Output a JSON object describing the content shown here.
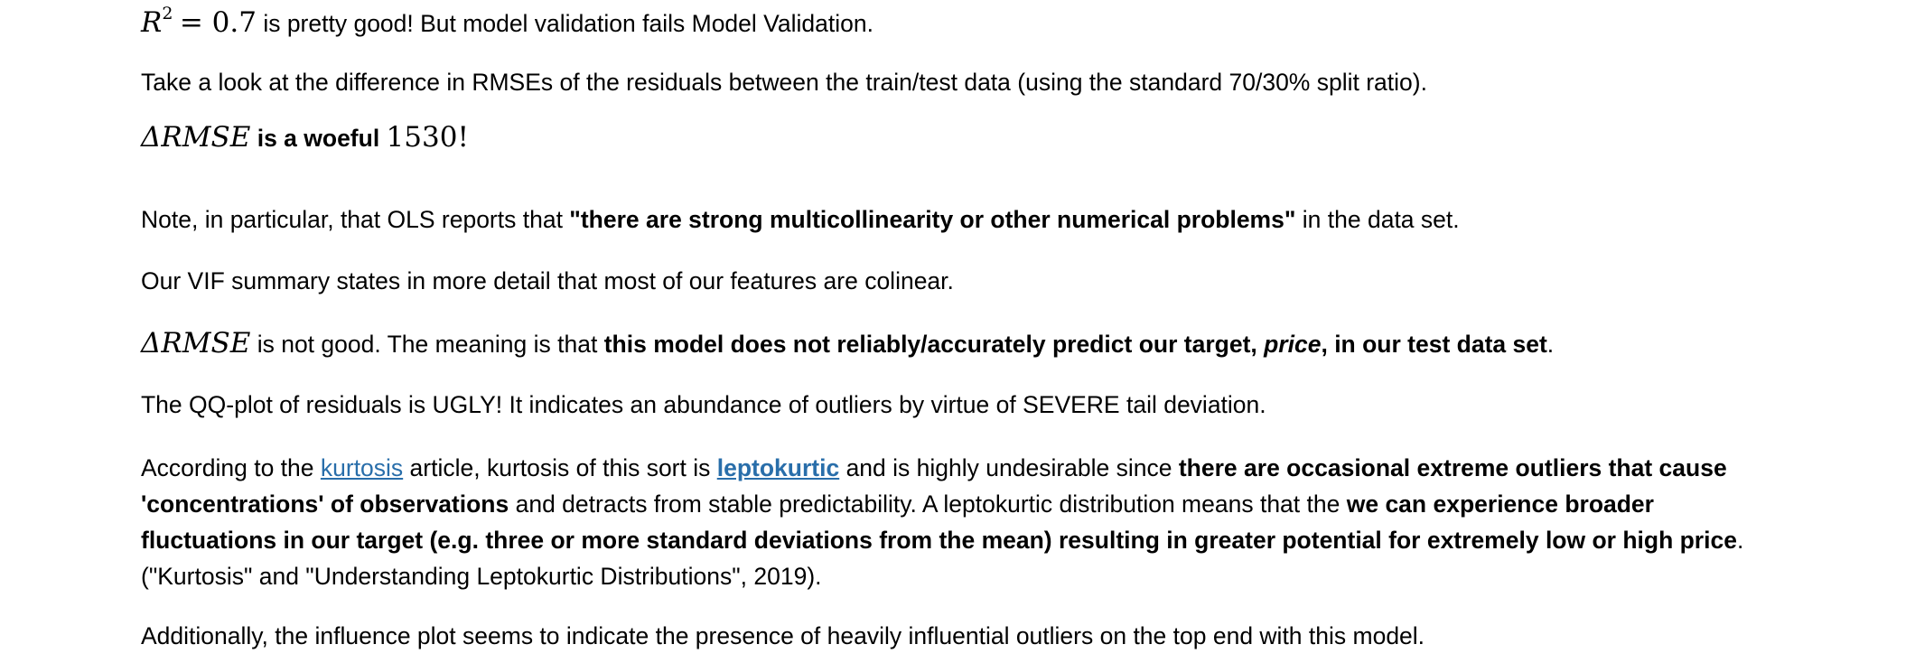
{
  "p1": {
    "r_symbol": "R",
    "r_sup": "2",
    "equals_value": "= 0.7",
    "text": " is pretty good! But model validation fails Model Validation."
  },
  "p2": {
    "text": "Take a look at the difference in RMSEs of the residuals between the train/test data (using the standard 70/30% split ratio)."
  },
  "p3": {
    "delta_symbol": "ΔRMSE",
    "bold_text": " is a woeful ",
    "value": "1530!"
  },
  "p4": {
    "before": "Note, in particular, that OLS reports that ",
    "bold": "\"there are strong multicollinearity or other numerical problems\"",
    "after": " in the data set."
  },
  "p5": {
    "text": "Our VIF summary states in more detail that most of our features are colinear."
  },
  "p6": {
    "delta_symbol": "ΔRMSE",
    "before": " is not good. The meaning is that ",
    "bold1": "this model does not reliably/accurately predict our target, ",
    "bold_italic": "price",
    "bold2": ", in our test data set",
    "after": "."
  },
  "p7": {
    "text": "The QQ-plot of residuals is UGLY! It indicates an abundance of outliers by virtue of SEVERE tail deviation."
  },
  "p8": {
    "line1_before": "According to the ",
    "link_kurtosis": "kurtosis",
    "line1_mid": " article, kurtosis of this sort is ",
    "link_leptokurtic": "leptokurtic",
    "line1_after": " and is highly undesirable since ",
    "line1_bold": "there are occasional extreme outliers that cause",
    "line2_bold": "'concentrations' of observations",
    "line2_after": " and detracts from stable predictability. A leptokurtic distribution means that the ",
    "line2_bold2": "we can experience broader",
    "line3_bold": "fluctuations in our target (e.g. three or more standard deviations from the mean) resulting in greater potential for extremely low or high price",
    "line3_after": ".",
    "line4": "(\"Kurtosis\" and \"Understanding Leptokurtic Distributions\", 2019)."
  },
  "p9": {
    "text": "Additionally, the influence plot seems to indicate the presence of heavily influential outliers on the top end with this model."
  },
  "colors": {
    "link": "#296eaa",
    "text": "#000000",
    "background": "#ffffff"
  }
}
